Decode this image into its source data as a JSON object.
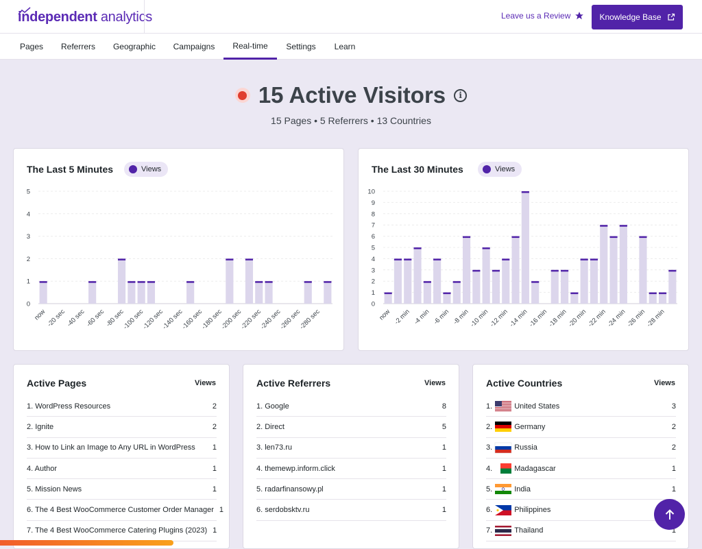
{
  "header": {
    "logo_bold": "independent",
    "logo_light": "analytics",
    "review_label": "Leave us a Review",
    "kb_label": "Knowledge Base"
  },
  "tabs": [
    {
      "label": "Pages"
    },
    {
      "label": "Referrers"
    },
    {
      "label": "Geographic"
    },
    {
      "label": "Campaigns"
    },
    {
      "label": "Real-time",
      "active": true
    },
    {
      "label": "Settings"
    },
    {
      "label": "Learn"
    }
  ],
  "hero": {
    "title": "15 Active Visitors",
    "subtitle": "15 Pages • 5 Referrers • 13 Countries"
  },
  "colors": {
    "accent": "#5123a8",
    "bar_fill": "#dcd6ec",
    "bar_cap": "#5123a8",
    "live": "#e03d2e"
  },
  "chart_data": [
    {
      "type": "bar",
      "title": "The Last 5 Minutes",
      "legend": "Views",
      "ylim": [
        0,
        5
      ],
      "yticks": [
        "0",
        "1",
        "2",
        "3",
        "4",
        "5"
      ],
      "xlabels": [
        "now",
        "-20 sec",
        "-40 sec",
        "-60 sec",
        "-80 sec",
        "-100 sec",
        "-120 sec",
        "-140 sec",
        "-160 sec",
        "-180 sec",
        "-200 sec",
        "-220 sec",
        "-240 sec",
        "-260 sec",
        "-280 sec"
      ],
      "values": [
        1,
        0,
        0,
        0,
        0,
        1,
        0,
        0,
        2,
        1,
        1,
        1,
        0,
        0,
        0,
        1,
        0,
        0,
        0,
        2,
        0,
        2,
        1,
        1,
        0,
        0,
        0,
        1,
        0,
        1
      ],
      "grid": true
    },
    {
      "type": "bar",
      "title": "The Last 30 Minutes",
      "legend": "Views",
      "ylim": [
        0,
        10
      ],
      "yticks": [
        "0",
        "1",
        "2",
        "3",
        "4",
        "5",
        "6",
        "7",
        "8",
        "9",
        "10"
      ],
      "xlabels": [
        "now",
        "-2 min",
        "-4 min",
        "-6 min",
        "-8 min",
        "-10 min",
        "-12 min",
        "-14 min",
        "-16 min",
        "-18 min",
        "-20 min",
        "-22 min",
        "-24 min",
        "-26 min",
        "-28 min"
      ],
      "values": [
        1,
        4,
        4,
        5,
        2,
        4,
        1,
        2,
        6,
        3,
        5,
        3,
        4,
        6,
        10,
        2,
        0,
        3,
        3,
        1,
        4,
        4,
        7,
        6,
        7,
        0,
        6,
        1,
        1,
        3
      ],
      "grid": true
    }
  ],
  "pages": {
    "title": "Active Pages",
    "views_label": "Views",
    "rows": [
      {
        "label": "1. WordPress Resources",
        "value": "2"
      },
      {
        "label": "2. Ignite",
        "value": "2"
      },
      {
        "label": "3. How to Link an Image to Any URL in WordPress",
        "value": "1"
      },
      {
        "label": "4. Author",
        "value": "1"
      },
      {
        "label": "5. Mission News",
        "value": "1"
      },
      {
        "label": "6. The 4 Best WooCommerce Customer Order Manager",
        "value": "1"
      },
      {
        "label": "7. The 4 Best WooCommerce Catering Plugins (2023)",
        "value": "1"
      }
    ]
  },
  "referrers": {
    "title": "Active Referrers",
    "views_label": "Views",
    "rows": [
      {
        "label": "1. Google",
        "value": "8"
      },
      {
        "label": "2. Direct",
        "value": "5"
      },
      {
        "label": "3. len73.ru",
        "value": "1"
      },
      {
        "label": "4. themewp.inform.click",
        "value": "1"
      },
      {
        "label": "5. radarfinansowy.pl",
        "value": "1"
      },
      {
        "label": "6. serdobsktv.ru",
        "value": "1"
      }
    ]
  },
  "countries": {
    "title": "Active Countries",
    "views_label": "Views",
    "rows": [
      {
        "num": "1.",
        "label": "United States",
        "value": "3",
        "flag": "us-flag"
      },
      {
        "num": "2.",
        "label": "Germany",
        "value": "2",
        "flag": "germany-flag"
      },
      {
        "num": "3.",
        "label": "Russia",
        "value": "2",
        "flag": "russia-flag"
      },
      {
        "num": "4.",
        "label": "Madagascar",
        "value": "1",
        "flag": "madagascar-flag"
      },
      {
        "num": "5.",
        "label": "India",
        "value": "1",
        "flag": "india-flag"
      },
      {
        "num": "6.",
        "label": "Philippines",
        "value": "1",
        "flag": "philippines-flag"
      },
      {
        "num": "7.",
        "label": "Thailand",
        "value": "1",
        "flag": "thailand-flag"
      }
    ]
  }
}
